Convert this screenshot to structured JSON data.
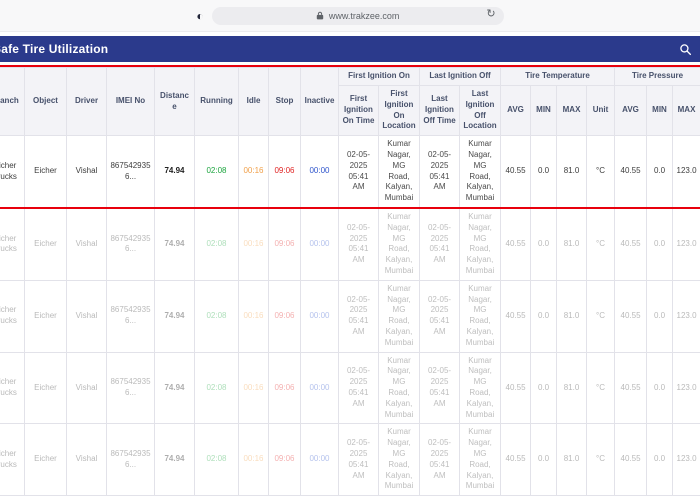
{
  "browser": {
    "url": "www.trakzee.com",
    "badge_glyph": "◐",
    "refresh_glyph": "↻"
  },
  "header": {
    "title": "Safe Tire Utilization"
  },
  "colors": {
    "header_bg": "#2b3a8c",
    "highlight": "#e8000d",
    "running": "#1da53f",
    "idle": "#f0a04a",
    "stop": "#e02424",
    "inactive": "#2f55cc"
  },
  "table": {
    "leaf_columns_before": [
      "Branch",
      "Object",
      "Driver",
      "IMEI No",
      "Distance",
      "Running",
      "Idle",
      "Stop",
      "Inactive"
    ],
    "groups": [
      {
        "label": "First Ignition On",
        "children": [
          "First Ignition On Time",
          "First Ignition On Location"
        ]
      },
      {
        "label": "Last Ignition Off",
        "children": [
          "Last Ignition Off Time",
          "Last Ignition Off Location"
        ]
      },
      {
        "label": "Tire Temperature",
        "children": [
          "AVG",
          "MIN",
          "MAX",
          "Unit"
        ]
      },
      {
        "label": "Tire Pressure",
        "children": [
          "AVG",
          "MIN",
          "MAX"
        ]
      }
    ],
    "rows": [
      {
        "branch": "Eicher Trucks",
        "object": "Eicher",
        "driver": "Vishal",
        "imei": "8675429356...",
        "distance": "74.94",
        "running": "02:08",
        "idle": "00:16",
        "stop": "09:06",
        "inactive": "00:00",
        "first_ignition_on_time": "02-05-2025 05:41 AM",
        "first_ignition_on_location": "Kumar Nagar, MG Road, Kalyan, Mumbai",
        "last_ignition_off_time": "02-05-2025 05:41 AM",
        "last_ignition_off_location": "Kumar Nagar, MG Road, Kalyan, Mumbai",
        "temp_avg": "40.55",
        "temp_min": "0.0",
        "temp_max": "81.0",
        "temp_unit": "°C",
        "pressure_avg": "40.55",
        "pressure_min": "0.0",
        "pressure_max": "123.0",
        "faded": false
      },
      {
        "branch": "Eicher Trucks",
        "object": "Eicher",
        "driver": "Vishal",
        "imei": "8675429356...",
        "distance": "74.94",
        "running": "02:08",
        "idle": "00:16",
        "stop": "09:06",
        "inactive": "00:00",
        "first_ignition_on_time": "02-05-2025 05:41 AM",
        "first_ignition_on_location": "Kumar Nagar, MG Road, Kalyan, Mumbai",
        "last_ignition_off_time": "02-05-2025 05:41 AM",
        "last_ignition_off_location": "Kumar Nagar, MG Road, Kalyan, Mumbai",
        "temp_avg": "40.55",
        "temp_min": "0.0",
        "temp_max": "81.0",
        "temp_unit": "°C",
        "pressure_avg": "40.55",
        "pressure_min": "0.0",
        "pressure_max": "123.0",
        "faded": true
      },
      {
        "branch": "Eicher Trucks",
        "object": "Eicher",
        "driver": "Vishal",
        "imei": "8675429356...",
        "distance": "74.94",
        "running": "02:08",
        "idle": "00:16",
        "stop": "09:06",
        "inactive": "00:00",
        "first_ignition_on_time": "02-05-2025 05:41 AM",
        "first_ignition_on_location": "Kumar Nagar, MG Road, Kalyan, Mumbai",
        "last_ignition_off_time": "02-05-2025 05:41 AM",
        "last_ignition_off_location": "Kumar Nagar, MG Road, Kalyan, Mumbai",
        "temp_avg": "40.55",
        "temp_min": "0.0",
        "temp_max": "81.0",
        "temp_unit": "°C",
        "pressure_avg": "40.55",
        "pressure_min": "0.0",
        "pressure_max": "123.0",
        "faded": true
      },
      {
        "branch": "Eicher Trucks",
        "object": "Eicher",
        "driver": "Vishal",
        "imei": "8675429356...",
        "distance": "74.94",
        "running": "02:08",
        "idle": "00:16",
        "stop": "09:06",
        "inactive": "00:00",
        "first_ignition_on_time": "02-05-2025 05:41 AM",
        "first_ignition_on_location": "Kumar Nagar, MG Road, Kalyan, Mumbai",
        "last_ignition_off_time": "02-05-2025 05:41 AM",
        "last_ignition_off_location": "Kumar Nagar, MG Road, Kalyan, Mumbai",
        "temp_avg": "40.55",
        "temp_min": "0.0",
        "temp_max": "81.0",
        "temp_unit": "°C",
        "pressure_avg": "40.55",
        "pressure_min": "0.0",
        "pressure_max": "123.0",
        "faded": true
      },
      {
        "branch": "Eicher Trucks",
        "object": "Eicher",
        "driver": "Vishal",
        "imei": "8675429356...",
        "distance": "74.94",
        "running": "02:08",
        "idle": "00:16",
        "stop": "09:06",
        "inactive": "00:00",
        "first_ignition_on_time": "02-05-2025 05:41 AM",
        "first_ignition_on_location": "Kumar Nagar, MG Road, Kalyan, Mumbai",
        "last_ignition_off_time": "02-05-2025 05:41 AM",
        "last_ignition_off_location": "Kumar Nagar, MG Road, Kalyan, Mumbai",
        "temp_avg": "40.55",
        "temp_min": "0.0",
        "temp_max": "81.0",
        "temp_unit": "°C",
        "pressure_avg": "40.55",
        "pressure_min": "0.0",
        "pressure_max": "123.0",
        "faded": true
      }
    ]
  }
}
